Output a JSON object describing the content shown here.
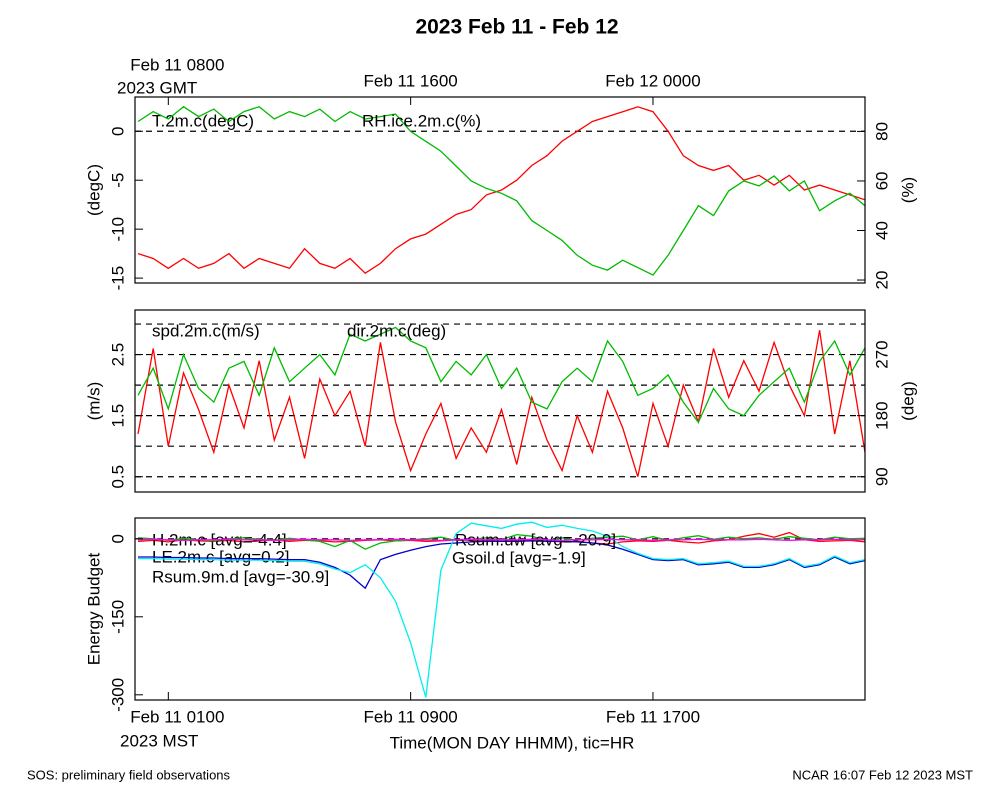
{
  "footer": {
    "left": "SOS: preliminary field observations",
    "right": "NCAR 16:07 Feb 12 2023 MST"
  },
  "chart_data": [
    {
      "type": "line",
      "title": "2023 Feb 11 - Feb 12",
      "x": [
        7,
        7.5,
        8,
        8.5,
        9,
        9.5,
        10,
        10.5,
        11,
        11.5,
        12,
        12.5,
        13,
        13.5,
        14,
        14.5,
        15,
        15.5,
        16,
        16.5,
        17,
        17.5,
        18,
        18.5,
        19,
        19.5,
        20,
        20.5,
        21,
        21.5,
        22,
        22.5,
        23,
        23.5,
        24,
        24.5,
        25,
        25.5,
        26,
        26.5,
        27,
        27.5,
        28,
        28.5,
        29,
        29.5,
        30,
        30.5,
        31
      ],
      "xlim": [
        6.9,
        31
      ],
      "xticks": [
        {
          "value": 8,
          "label": "Feb 11 0800"
        },
        {
          "value": 16,
          "label": "Feb 11 1600"
        },
        {
          "value": 24,
          "label": "Feb 12 0000"
        }
      ],
      "xaxis_note": "2023 GMT",
      "ylabel": "(degC)",
      "ylim": [
        -15.5,
        3.5
      ],
      "yticks": [
        -15,
        -10,
        -5,
        0
      ],
      "y2label": "(%)",
      "y2lim": [
        18.8,
        93.9
      ],
      "y2ticks": [
        20,
        40,
        60,
        80
      ],
      "hlines": [
        0
      ],
      "series": [
        {
          "name": "T.2m.c(degC)",
          "color": "#ff0000",
          "values": [
            -12.5,
            -13,
            -14,
            -13,
            -14,
            -13.5,
            -12.5,
            -14,
            -13,
            -13.5,
            -14,
            -12,
            -13.5,
            -14,
            -13,
            -14.5,
            -13.5,
            -12,
            -11,
            -10.5,
            -9.5,
            -8.5,
            -8,
            -6.5,
            -6,
            -5,
            -3.5,
            -2.5,
            -1,
            0,
            1,
            1.5,
            2,
            2.5,
            2,
            0,
            -2.5,
            -3.5,
            -4,
            -3.5,
            -5,
            -4.5,
            -5.5,
            -4.5,
            -6,
            -5.5,
            -6,
            -6.5,
            -7
          ]
        },
        {
          "name": "RH.ice.2m.c(%)",
          "color": "#00bb00",
          "axis": "y2",
          "values": [
            84,
            88,
            85,
            90,
            86,
            89,
            84,
            88,
            90,
            85,
            88,
            86,
            89,
            84,
            88,
            85,
            86,
            87,
            80,
            76,
            72,
            66,
            60,
            57,
            55,
            52,
            44,
            40,
            36,
            30,
            26,
            24,
            28,
            25,
            22,
            30,
            40,
            50,
            46,
            56,
            60,
            58,
            62,
            56,
            60,
            48,
            52,
            55,
            50
          ]
        }
      ]
    },
    {
      "type": "line",
      "x": [
        7,
        7.5,
        8,
        8.5,
        9,
        9.5,
        10,
        10.5,
        11,
        11.5,
        12,
        12.5,
        13,
        13.5,
        14,
        14.5,
        15,
        15.5,
        16,
        16.5,
        17,
        17.5,
        18,
        18.5,
        19,
        19.5,
        20,
        20.5,
        21,
        21.5,
        22,
        22.5,
        23,
        23.5,
        24,
        24.5,
        25,
        25.5,
        26,
        26.5,
        27,
        27.5,
        28,
        28.5,
        29,
        29.5,
        30,
        30.5,
        31
      ],
      "xlim": [
        6.9,
        31
      ],
      "ylabel": "(m/s)",
      "ylim": [
        0.25,
        3.23
      ],
      "yticks": [
        0.5,
        1.5,
        2.5
      ],
      "y2label": "(deg)",
      "y2lim": [
        67.5,
        335.7
      ],
      "y2ticks": [
        90,
        180,
        270
      ],
      "hlines": [
        0.5,
        1,
        1.5,
        2,
        2.5,
        3
      ],
      "series": [
        {
          "name": "spd.2m.c(m/s)",
          "color": "#ff0000",
          "values": [
            1.2,
            2.6,
            1.0,
            2.2,
            1.6,
            0.9,
            2.0,
            1.3,
            2.4,
            1.1,
            1.8,
            0.8,
            2.1,
            1.5,
            1.9,
            1.0,
            2.7,
            1.4,
            0.6,
            1.2,
            1.7,
            0.8,
            1.3,
            0.9,
            1.6,
            0.7,
            1.8,
            1.1,
            0.6,
            1.5,
            0.9,
            1.9,
            1.3,
            0.5,
            1.7,
            1.0,
            2.0,
            1.4,
            2.6,
            1.8,
            2.4,
            1.9,
            2.7,
            2.0,
            1.5,
            2.9,
            1.2,
            2.4,
            0.9
          ]
        },
        {
          "name": "dir.2m.c(deg)",
          "color": "#00bb00",
          "axis": "y2",
          "values": [
            210,
            250,
            190,
            270,
            220,
            200,
            250,
            260,
            210,
            280,
            230,
            250,
            270,
            240,
            300,
            290,
            300,
            310,
            290,
            280,
            230,
            260,
            240,
            270,
            220,
            250,
            200,
            190,
            230,
            250,
            230,
            290,
            260,
            210,
            220,
            240,
            200,
            170,
            220,
            190,
            180,
            210,
            230,
            250,
            200,
            260,
            290,
            240,
            280
          ]
        }
      ]
    },
    {
      "type": "line",
      "x": [
        7,
        7.5,
        8,
        8.5,
        9,
        9.5,
        10,
        10.5,
        11,
        11.5,
        12,
        12.5,
        13,
        13.5,
        14,
        14.5,
        15,
        15.5,
        16,
        16.5,
        17,
        17.5,
        18,
        18.5,
        19,
        19.5,
        20,
        20.5,
        21,
        21.5,
        22,
        22.5,
        23,
        23.5,
        24,
        24.5,
        25,
        25.5,
        26,
        26.5,
        27,
        27.5,
        28,
        28.5,
        29,
        29.5,
        30,
        30.5,
        31
      ],
      "xlim": [
        6.9,
        31
      ],
      "xticks": [
        {
          "value": 8,
          "label": "Feb 11 0100"
        },
        {
          "value": 16,
          "label": "Feb 11 0900"
        },
        {
          "value": 24,
          "label": "Feb 11 1700"
        }
      ],
      "xaxis_note": "2023 MST",
      "xlabel": "Time(MON DAY HHMM), tic=HR",
      "ylabel": "Energy Budget",
      "ylim": [
        -310,
        40
      ],
      "yticks": [
        -300,
        -150,
        0
      ],
      "hlines": [
        0
      ],
      "series": [
        {
          "name": "H.2m.c [avg=-4.4]",
          "color": "#ff0000",
          "values": [
            -5,
            -3,
            -6,
            -2,
            -4,
            -5,
            -3,
            -6,
            -4,
            -2,
            -5,
            -3,
            -4,
            -6,
            -5,
            -3,
            -2,
            -4,
            -3,
            -5,
            -4,
            -2,
            -3,
            -4,
            -5,
            -3,
            -2,
            -4,
            -6,
            -5,
            -8,
            -10,
            -6,
            -4,
            -5,
            -3,
            -6,
            -8,
            -4,
            -2,
            5,
            10,
            3,
            12,
            -2,
            -5,
            -4,
            -3,
            -6
          ]
        },
        {
          "name": "LE.2m.c [avg=0.2]",
          "color": "#00bb00",
          "values": [
            2,
            0,
            -3,
            1,
            -2,
            -4,
            0,
            2,
            -1,
            -3,
            1,
            -2,
            -5,
            -15,
            -3,
            -20,
            -8,
            -4,
            -2,
            0,
            3,
            -3,
            -1,
            2,
            -2,
            8,
            5,
            -4,
            2,
            -3,
            1,
            3,
            5,
            -2,
            4,
            -3,
            2,
            6,
            -1,
            3,
            0,
            2,
            -1,
            4,
            1,
            -2,
            3,
            0,
            1
          ]
        },
        {
          "name": "Rsum.9m.d [avg=-30.9]",
          "color": "#0000cc",
          "values": [
            -35,
            -35,
            -36,
            -36,
            -37,
            -37,
            -38,
            -38,
            -38,
            -39,
            -40,
            -40,
            -45,
            -55,
            -70,
            -95,
            -40,
            -30,
            -22,
            -15,
            -10,
            -8,
            -6,
            -5,
            -5,
            -5,
            -4,
            -5,
            -5,
            -6,
            -8,
            -12,
            -20,
            -30,
            -40,
            -42,
            -40,
            -50,
            -48,
            -45,
            -55,
            -55,
            -50,
            -40,
            -55,
            -50,
            -35,
            -48,
            -42
          ]
        },
        {
          "name": "Rsum.uw [avg=-20.9]",
          "color": "#00eeee",
          "values": [
            -38,
            -38,
            -39,
            -39,
            -40,
            -40,
            -41,
            -41,
            -41,
            -42,
            -43,
            -43,
            -48,
            -58,
            -65,
            -50,
            -75,
            -120,
            -200,
            -305,
            -60,
            10,
            30,
            25,
            20,
            28,
            32,
            22,
            26,
            20,
            15,
            5,
            -15,
            -28,
            -38,
            -40,
            -38,
            -48,
            -46,
            -43,
            -53,
            -53,
            -48,
            -38,
            -53,
            -48,
            -33,
            -46,
            -40
          ]
        },
        {
          "name": "Gsoil.d [avg=-1.9]",
          "color": "#ff00ff",
          "values": [
            -2,
            -1,
            -2,
            -3,
            -2,
            -2,
            -1,
            -2,
            -2,
            -3,
            -2,
            -1,
            -2,
            -2,
            -3,
            -2,
            -2,
            -1,
            -2,
            -2,
            -3,
            -2,
            -1,
            -2,
            -2,
            -2,
            -1,
            -2,
            -3,
            -2,
            -2,
            -1,
            -2,
            -2,
            -3,
            -2,
            -2,
            -1,
            -2,
            -2,
            -2,
            -1,
            -2,
            -3,
            -2,
            -2,
            -1,
            -2,
            -2
          ]
        }
      ]
    }
  ]
}
